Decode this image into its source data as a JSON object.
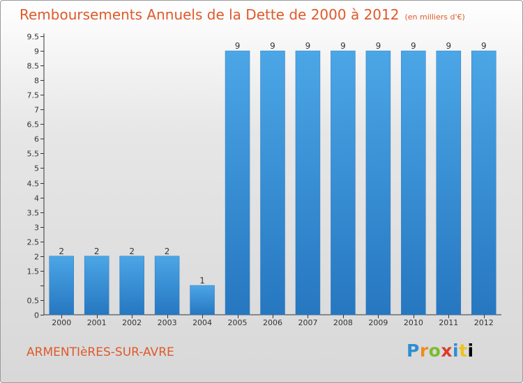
{
  "header": {
    "title": "Remboursements Annuels de la Dette de 2000 à 2012",
    "unit": "(en milliers d'€)"
  },
  "footer": {
    "commune": "ARMENTIèRES-SUR-AVRE",
    "logo_letters": [
      "P",
      "r",
      "o",
      "x",
      "i",
      "t",
      "i"
    ]
  },
  "chart_data": {
    "type": "bar",
    "title": "Remboursements Annuels de la Dette de 2000 à 2012",
    "subtitle": "(en milliers d'€)",
    "categories": [
      "2000",
      "2001",
      "2002",
      "2003",
      "2004",
      "2005",
      "2006",
      "2007",
      "2008",
      "2009",
      "2010",
      "2011",
      "2012"
    ],
    "values": [
      2,
      2,
      2,
      2,
      1,
      9,
      9,
      9,
      9,
      9,
      9,
      9,
      9
    ],
    "value_labels": [
      "2",
      "2",
      "2",
      "2",
      "1",
      "9",
      "9",
      "9",
      "9",
      "9",
      "9",
      "9",
      "9"
    ],
    "ylim": [
      0,
      9.5
    ],
    "yticks": [
      0,
      0.5,
      1,
      1.5,
      2,
      2.5,
      3,
      3.5,
      4,
      4.5,
      5,
      5.5,
      6,
      6.5,
      7,
      7.5,
      8,
      8.5,
      9,
      9.5
    ],
    "ytick_labels": [
      "0",
      "0.5",
      "",
      "1.5",
      "2",
      "2.5",
      "3",
      "3.5",
      "4",
      "4.5",
      "5",
      "5.5",
      "6",
      "6.5",
      "7",
      "7.5",
      "8",
      "8.5",
      "9",
      "9.5"
    ],
    "grid": false,
    "legend": "none",
    "bar_color": "#4ba6e6",
    "bar_color_dark": "#2677c0"
  }
}
